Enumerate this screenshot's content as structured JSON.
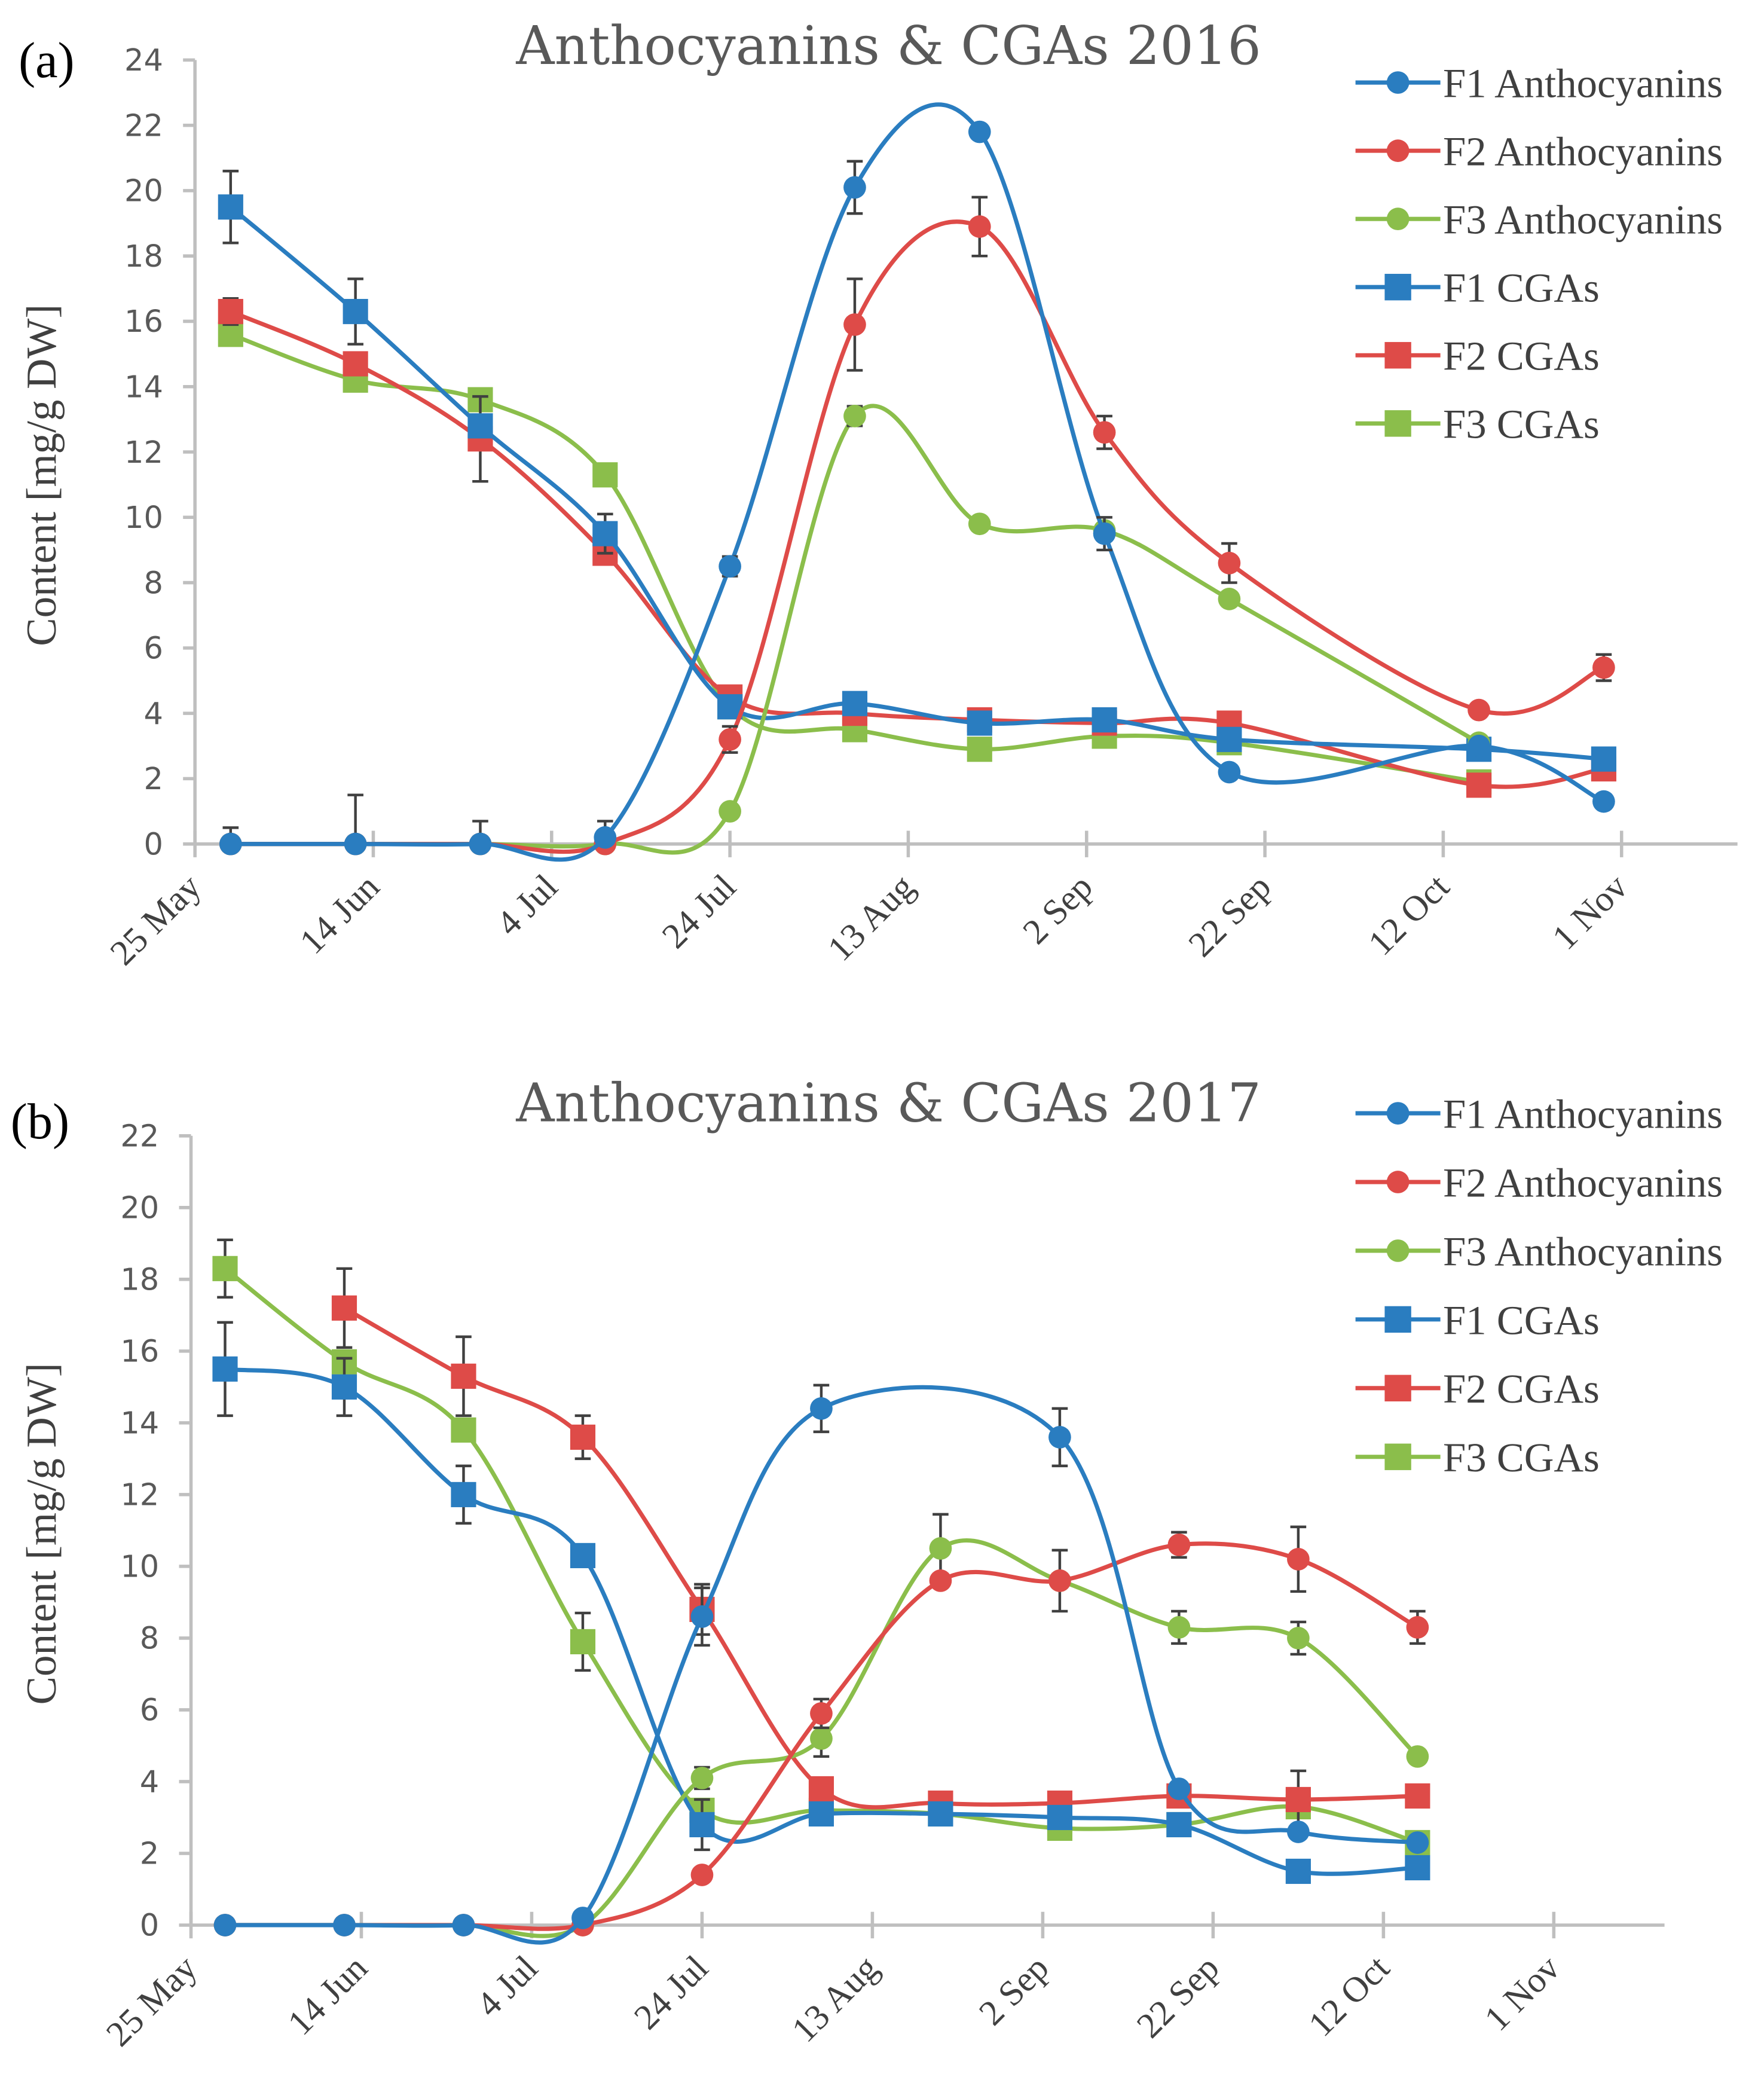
{
  "chart_data": [
    {
      "type": "line",
      "panel_label": "(a)",
      "title": "Anthocyanins & CGAs 2016",
      "xlabel": "",
      "ylabel": "Content [mg/g DW]",
      "ylim": [
        0,
        24
      ],
      "y_ticks": [
        0,
        2,
        4,
        6,
        8,
        10,
        12,
        14,
        16,
        18,
        20,
        22,
        24
      ],
      "xlim": [
        "2016-05-25",
        "2016-11-14"
      ],
      "x_ticks": [
        {
          "label": "25 May",
          "date": "2016-05-25"
        },
        {
          "label": "14 Jun",
          "date": "2016-06-14"
        },
        {
          "label": "4 Jul",
          "date": "2016-07-04"
        },
        {
          "label": "24 Jul",
          "date": "2016-07-24"
        },
        {
          "label": "13 Aug",
          "date": "2016-08-13"
        },
        {
          "label": "2 Sep",
          "date": "2016-09-02"
        },
        {
          "label": "22 Sep",
          "date": "2016-09-22"
        },
        {
          "label": "12 Oct",
          "date": "2016-10-12"
        },
        {
          "label": "1 Nov",
          "date": "2016-11-01"
        }
      ],
      "grid": false,
      "legend": "top-right",
      "smoothed": true,
      "x": [
        "2016-05-29",
        "2016-06-12",
        "2016-06-26",
        "2016-07-10",
        "2016-07-24",
        "2016-08-07",
        "2016-08-21",
        "2016-09-04",
        "2016-09-18",
        "2016-10-16",
        "2016-10-30"
      ],
      "series": [
        {
          "name": "F1 Anthocyanins",
          "marker": "circle",
          "color": "#2a7dc0",
          "values": [
            0,
            0,
            0,
            0.2,
            8.5,
            20.1,
            21.8,
            9.5,
            2.2,
            3.0,
            1.3
          ],
          "error": [
            0.5,
            1.5,
            0.7,
            0.5,
            0.3,
            0.8,
            0,
            0.5,
            0,
            0,
            0
          ]
        },
        {
          "name": "F2 Anthocyanins",
          "marker": "circle",
          "color": "#de4b48",
          "values": [
            0,
            0,
            0,
            0,
            3.2,
            15.9,
            18.9,
            12.6,
            8.6,
            4.1,
            5.4
          ],
          "error": [
            0,
            0,
            0,
            0,
            0.4,
            1.4,
            0.9,
            0.5,
            0.6,
            0,
            0.4
          ]
        },
        {
          "name": "F3 Anthocyanins",
          "marker": "circle",
          "color": "#8bbe4b",
          "values": [
            0,
            0,
            0,
            0,
            1.0,
            13.1,
            9.8,
            9.6,
            7.5,
            3.1,
            null
          ],
          "error": [
            0,
            0,
            0,
            0,
            0,
            0.3,
            0.2,
            0.2,
            0,
            0,
            0
          ]
        },
        {
          "name": "F1 CGAs",
          "marker": "square",
          "color": "#2a7dc0",
          "values": [
            19.5,
            16.3,
            12.8,
            9.5,
            4.2,
            4.3,
            3.7,
            3.8,
            3.2,
            2.9,
            2.6
          ],
          "error": [
            1.1,
            1.0,
            0,
            0.6,
            0.3,
            0,
            0,
            0,
            0,
            0,
            0
          ]
        },
        {
          "name": "F2 CGAs",
          "marker": "square",
          "color": "#de4b48",
          "values": [
            16.3,
            14.7,
            12.4,
            8.9,
            4.5,
            4.0,
            3.8,
            3.7,
            3.7,
            1.8,
            2.3
          ],
          "error": [
            0.4,
            0,
            1.3,
            0,
            0,
            0,
            0,
            0,
            0,
            0,
            0
          ]
        },
        {
          "name": "F3 CGAs",
          "marker": "square",
          "color": "#8bbe4b",
          "values": [
            15.6,
            14.2,
            13.6,
            11.3,
            4.2,
            3.5,
            2.9,
            3.3,
            3.1,
            1.9,
            null
          ],
          "error": [
            0,
            0,
            0,
            0,
            0,
            0,
            0,
            0,
            0,
            0,
            0
          ]
        }
      ]
    },
    {
      "type": "line",
      "panel_label": "(b)",
      "title": "Anthocyanins & CGAs 2017",
      "xlabel": "",
      "ylabel": "Content [mg/g DW]",
      "ylim": [
        0,
        22
      ],
      "y_ticks": [
        0,
        2,
        4,
        6,
        8,
        10,
        12,
        14,
        16,
        18,
        20,
        22
      ],
      "xlim": [
        "2017-05-25",
        "2017-11-14"
      ],
      "x_ticks": [
        {
          "label": "25 May",
          "date": "2017-05-25"
        },
        {
          "label": "14 Jun",
          "date": "2017-06-14"
        },
        {
          "label": "4 Jul",
          "date": "2017-07-04"
        },
        {
          "label": "24 Jul",
          "date": "2017-07-24"
        },
        {
          "label": "13 Aug",
          "date": "2017-08-13"
        },
        {
          "label": "2 Sep",
          "date": "2017-09-02"
        },
        {
          "label": "22 Sep",
          "date": "2017-09-22"
        },
        {
          "label": "12 Oct",
          "date": "2017-10-12"
        },
        {
          "label": "1 Nov",
          "date": "2017-11-01"
        }
      ],
      "grid": false,
      "legend": "top-right",
      "smoothed": true,
      "x": [
        "2017-05-29",
        "2017-06-12",
        "2017-06-26",
        "2017-07-10",
        "2017-07-24",
        "2017-08-07",
        "2017-08-21",
        "2017-09-04",
        "2017-09-18",
        "2017-10-02",
        "2017-10-16"
      ],
      "series": [
        {
          "name": "F1 Anthocyanins",
          "marker": "circle",
          "color": "#2a7dc0",
          "values": [
            0,
            0,
            0,
            0.2,
            8.6,
            14.4,
            null,
            13.6,
            3.8,
            2.6,
            2.3
          ],
          "error": [
            0,
            0,
            0,
            0,
            0.8,
            0.65,
            0,
            0.8,
            0,
            0,
            0
          ]
        },
        {
          "name": "F2 Anthocyanins",
          "marker": "circle",
          "color": "#de4b48",
          "values": [
            0,
            0,
            0,
            0,
            1.4,
            5.9,
            9.6,
            9.6,
            10.6,
            10.2,
            8.3
          ],
          "error": [
            0,
            0,
            0,
            0,
            0,
            0.4,
            0,
            0,
            0.35,
            0.9,
            0.45
          ]
        },
        {
          "name": "F3 Anthocyanins",
          "marker": "circle",
          "color": "#8bbe4b",
          "values": [
            0,
            0,
            0,
            0,
            4.1,
            5.2,
            10.5,
            9.6,
            8.3,
            8.0,
            4.7
          ],
          "error": [
            0,
            0,
            0,
            0,
            0.3,
            0.5,
            0.95,
            0.85,
            0.45,
            0.45,
            0
          ]
        },
        {
          "name": "F1 CGAs",
          "marker": "square",
          "color": "#2a7dc0",
          "values": [
            15.5,
            15.0,
            12.0,
            10.3,
            2.8,
            3.1,
            3.1,
            3.0,
            2.8,
            1.5,
            1.6
          ],
          "error": [
            1.3,
            0.8,
            0.8,
            0,
            0.7,
            0,
            0,
            0,
            0,
            0,
            0
          ]
        },
        {
          "name": "F2 CGAs",
          "marker": "square",
          "color": "#de4b48",
          "values": [
            null,
            17.2,
            15.3,
            13.6,
            8.8,
            3.8,
            3.4,
            3.4,
            3.6,
            3.5,
            3.6
          ],
          "error": [
            0,
            1.1,
            1.1,
            0.6,
            0.7,
            0,
            0,
            0,
            0,
            0.8,
            0
          ]
        },
        {
          "name": "F3 CGAs",
          "marker": "square",
          "color": "#8bbe4b",
          "values": [
            18.3,
            15.7,
            13.8,
            7.9,
            3.2,
            3.2,
            3.1,
            2.7,
            2.8,
            3.3,
            2.3
          ],
          "error": [
            0.8,
            0,
            0,
            0.8,
            0,
            0.3,
            0,
            0,
            0,
            0,
            0
          ]
        }
      ]
    }
  ]
}
